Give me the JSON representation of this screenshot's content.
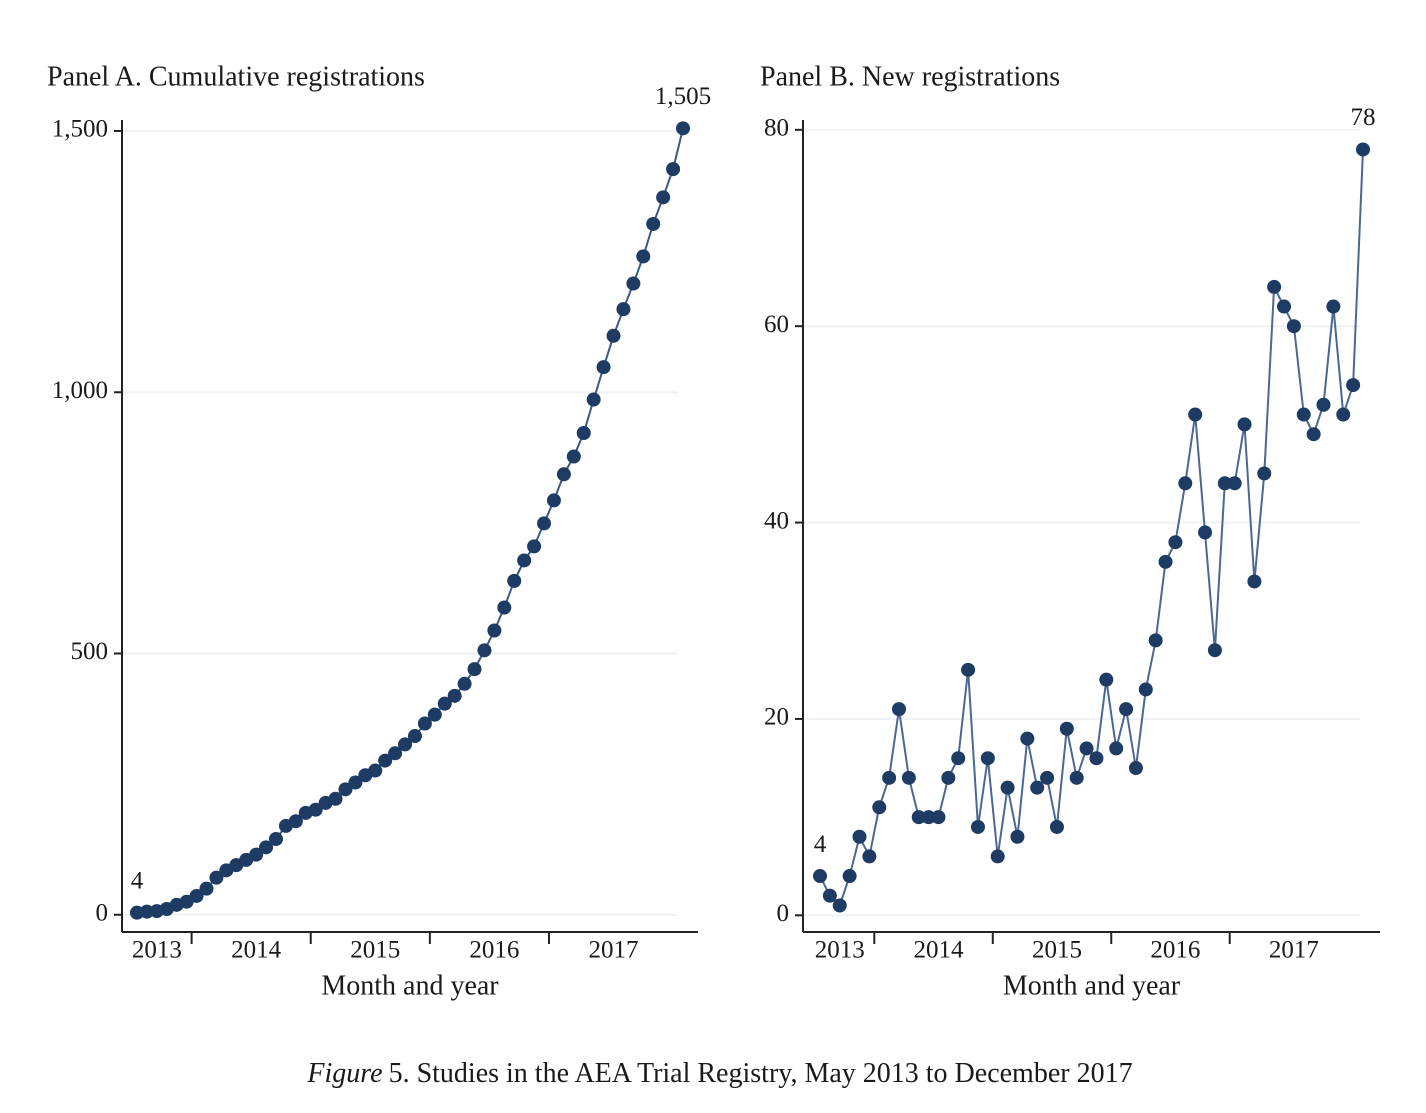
{
  "chart_data": [
    {
      "type": "line",
      "title": "Panel A. Cumulative registrations",
      "x_label": "Month and year",
      "categories": [
        null,
        null,
        "2013",
        null,
        null,
        null,
        null,
        null,
        null,
        null,
        null,
        null,
        "2014",
        null,
        null,
        null,
        null,
        null,
        null,
        null,
        null,
        null,
        null,
        null,
        "2015",
        null,
        null,
        null,
        null,
        null,
        null,
        null,
        null,
        null,
        null,
        null,
        "2016",
        null,
        null,
        null,
        null,
        null,
        null,
        null,
        null,
        null,
        null,
        null,
        "2017",
        null,
        null,
        null,
        null,
        null,
        null,
        null
      ],
      "values": [
        4,
        6,
        7,
        11,
        19,
        25,
        36,
        50,
        71,
        85,
        95,
        105,
        115,
        129,
        145,
        170,
        179,
        195,
        201,
        214,
        222,
        240,
        253,
        267,
        276,
        295,
        309,
        326,
        342,
        366,
        383,
        404,
        419,
        442,
        470,
        506,
        544,
        588,
        639,
        678,
        705,
        749,
        793,
        843,
        877,
        922,
        986,
        1048,
        1108,
        1159,
        1208,
        1260,
        1322,
        1373,
        1427,
        1505
      ],
      "value_labels": [
        "4",
        null,
        null,
        null,
        null,
        null,
        null,
        null,
        null,
        null,
        null,
        null,
        null,
        null,
        null,
        null,
        null,
        null,
        null,
        null,
        null,
        null,
        null,
        null,
        null,
        null,
        null,
        null,
        null,
        null,
        null,
        null,
        null,
        null,
        null,
        null,
        null,
        null,
        null,
        null,
        null,
        null,
        null,
        null,
        null,
        null,
        null,
        null,
        null,
        null,
        null,
        null,
        null,
        null,
        null,
        "1,505"
      ],
      "color": "#1d3b63",
      "line_color": "#3a5a85",
      "ylim": [
        -33,
        1521
      ],
      "yticks": [
        0,
        500,
        {
          "value": 1000,
          "label": "1,000"
        },
        {
          "value": 1500,
          "label": "1,500"
        }
      ],
      "grid": true
    },
    {
      "type": "line",
      "title": "Panel B. New registrations",
      "x_label": "Month and year",
      "categories": [
        null,
        null,
        "2013",
        null,
        null,
        null,
        null,
        null,
        null,
        null,
        null,
        null,
        "2014",
        null,
        null,
        null,
        null,
        null,
        null,
        null,
        null,
        null,
        null,
        null,
        "2015",
        null,
        null,
        null,
        null,
        null,
        null,
        null,
        null,
        null,
        null,
        null,
        "2016",
        null,
        null,
        null,
        null,
        null,
        null,
        null,
        null,
        null,
        null,
        null,
        "2017",
        null,
        null,
        null,
        null,
        null,
        null,
        null
      ],
      "values": [
        4,
        2,
        1,
        4,
        8,
        6,
        11,
        14,
        21,
        14,
        10,
        10,
        10,
        14,
        16,
        25,
        9,
        16,
        6,
        13,
        8,
        18,
        13,
        14,
        9,
        19,
        14,
        17,
        16,
        24,
        17,
        21,
        15,
        23,
        28,
        36,
        38,
        44,
        51,
        39,
        27,
        44,
        44,
        50,
        34,
        45,
        64,
        62,
        60,
        51,
        49,
        52,
        62,
        51,
        54,
        78
      ],
      "value_labels": [
        "4",
        null,
        null,
        null,
        null,
        null,
        null,
        null,
        null,
        null,
        null,
        null,
        null,
        null,
        null,
        null,
        null,
        null,
        null,
        null,
        null,
        null,
        null,
        null,
        null,
        null,
        null,
        null,
        null,
        null,
        null,
        null,
        null,
        null,
        null,
        null,
        null,
        null,
        null,
        null,
        null,
        null,
        null,
        null,
        null,
        null,
        null,
        null,
        null,
        null,
        null,
        null,
        null,
        null,
        null,
        "78"
      ],
      "color": "#1d3b63",
      "line_color": "#4a6893",
      "ylim": [
        -1.7,
        81
      ],
      "yticks": [
        0,
        20,
        40,
        60,
        80
      ],
      "grid": true
    }
  ],
  "caption": {
    "label": "Figure",
    "text": "5. Studies in the AEA Trial Registry, May 2013 to December 2017"
  }
}
